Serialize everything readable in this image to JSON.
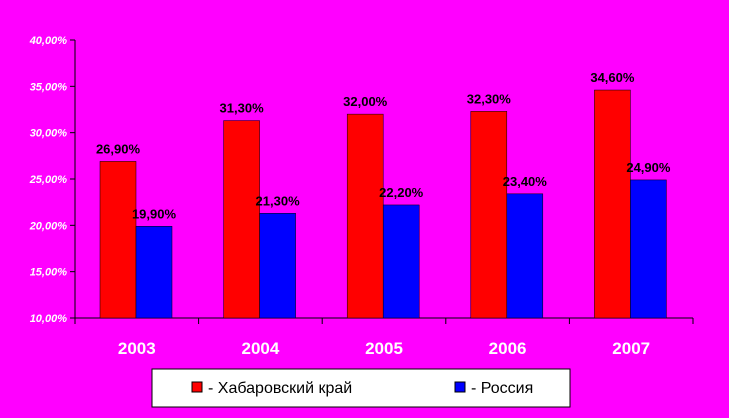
{
  "chart_data": {
    "type": "bar",
    "categories": [
      "2003",
      "2004",
      "2005",
      "2006",
      "2007"
    ],
    "series": [
      {
        "name": "- Хабаровский край",
        "values": [
          26.9,
          31.3,
          32.0,
          32.3,
          34.6
        ],
        "labels": [
          "26,90%",
          "31,30%",
          "32,00%",
          "32,30%",
          "34,60%"
        ],
        "color": "#FF0000"
      },
      {
        "name": "- Россия",
        "values": [
          19.9,
          21.3,
          22.2,
          23.4,
          24.9
        ],
        "labels": [
          "19,90%",
          "21,30%",
          "22,20%",
          "23,40%",
          "24,90%"
        ],
        "color": "#0000FF"
      }
    ],
    "ylim": [
      10,
      40
    ],
    "yticks": [
      10,
      15,
      20,
      25,
      30,
      35,
      40
    ],
    "ytick_labels": [
      "10,00%",
      "15,00%",
      "20,00%",
      "25,00%",
      "30,00%",
      "35,00%",
      "40,00%"
    ],
    "grid": false,
    "legend_position": "bottom",
    "background_color": "#FF00FF"
  }
}
